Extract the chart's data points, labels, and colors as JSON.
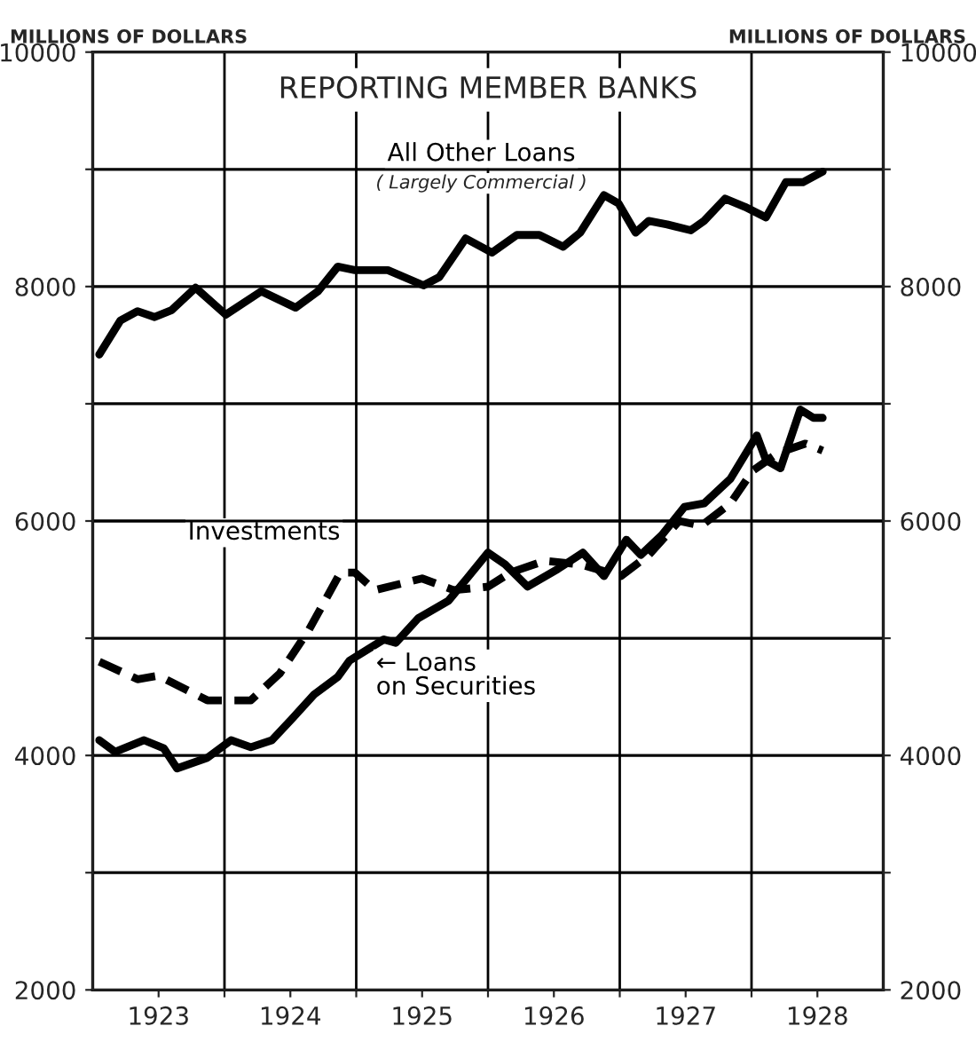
{
  "chart_data": {
    "type": "line",
    "title": "REPORTING MEMBER BANKS",
    "ylabel": "MILLIONS OF DOLLARS",
    "y2label": "MILLIONS OF DOLLARS",
    "annotations": [
      "( Largely Commercial )"
    ],
    "xlim": [
      1923,
      1929
    ],
    "xticks": [
      {
        "value": 1924,
        "label": null
      },
      {
        "value": 1925,
        "label": null
      },
      {
        "value": 1926,
        "label": null
      },
      {
        "value": 1927,
        "label": null
      },
      {
        "value": 1928,
        "label": null
      },
      {
        "value": 1923.5,
        "label": "1923"
      },
      {
        "value": 1924.5,
        "label": "1924"
      },
      {
        "value": 1925.5,
        "label": "1925"
      },
      {
        "value": 1926.5,
        "label": "1926"
      },
      {
        "value": 1927.5,
        "label": "1927"
      },
      {
        "value": 1928.5,
        "label": "1928"
      }
    ],
    "ylim": [
      2000,
      10000
    ],
    "yticks": [
      2000,
      {
        "value": 3000,
        "label": null
      },
      4000,
      {
        "value": 5000,
        "label": null
      },
      6000,
      {
        "value": 7000,
        "label": null
      },
      8000,
      {
        "value": 9000,
        "label": null
      },
      10000
    ],
    "y2lim": [
      2000,
      10000
    ],
    "y2ticks": [
      2000,
      {
        "value": 3000,
        "label": null
      },
      4000,
      {
        "value": 5000,
        "label": null
      },
      6000,
      {
        "value": 7000,
        "label": null
      },
      8000,
      {
        "value": 9000,
        "label": null
      },
      10000
    ],
    "grid": true,
    "legend": false,
    "marker": "none",
    "series": [
      {
        "name": "All Other Loans",
        "color": "#000000",
        "line_style": "solid",
        "x": [
          1923.05,
          1923.21,
          1923.34,
          1923.47,
          1923.6,
          1923.78,
          1924.01,
          1924.28,
          1924.54,
          1924.71,
          1924.86,
          1924.99,
          1925.24,
          1925.51,
          1925.63,
          1925.83,
          1926.03,
          1926.22,
          1926.39,
          1926.57,
          1926.7,
          1926.88,
          1926.99,
          1927.12,
          1927.22,
          1927.36,
          1927.54,
          1927.64,
          1927.8,
          1927.95,
          1928.11,
          1928.26,
          1928.39,
          1928.54
        ],
        "values": [
          7420,
          7710,
          7790,
          7740,
          7800,
          7990,
          7760,
          7960,
          7820,
          7960,
          8170,
          8140,
          8140,
          8010,
          8080,
          8410,
          8290,
          8440,
          8440,
          8340,
          8460,
          8780,
          8710,
          8460,
          8560,
          8530,
          8480,
          8560,
          8750,
          8680,
          8590,
          8890,
          8890,
          8980
        ]
      },
      {
        "name": "Investments",
        "color": "#000000",
        "line_style": "dashed",
        "x": [
          1923.05,
          1923.34,
          1923.5,
          1923.87,
          1924.2,
          1924.42,
          1924.64,
          1924.88,
          1924.99,
          1925.14,
          1925.5,
          1925.74,
          1926.0,
          1926.17,
          1926.43,
          1926.7,
          1927.01,
          1927.22,
          1927.45,
          1927.62,
          1927.84,
          1928.01,
          1928.2,
          1928.41,
          1928.54
        ],
        "values": [
          4800,
          4650,
          4680,
          4470,
          4470,
          4700,
          5070,
          5560,
          5560,
          5410,
          5510,
          5410,
          5440,
          5560,
          5660,
          5630,
          5530,
          5710,
          6000,
          5960,
          6150,
          6430,
          6580,
          6660,
          6600
        ]
      },
      {
        "name": "← Loans\non Securities",
        "color": "#000000",
        "line_style": "solid",
        "x": [
          1923.05,
          1923.17,
          1923.39,
          1923.54,
          1923.64,
          1923.87,
          1924.05,
          1924.2,
          1924.36,
          1924.51,
          1924.68,
          1924.86,
          1924.95,
          1925.21,
          1925.3,
          1925.47,
          1925.7,
          1925.84,
          1926.0,
          1926.13,
          1926.3,
          1926.53,
          1926.72,
          1926.88,
          1927.05,
          1927.16,
          1927.32,
          1927.49,
          1927.64,
          1927.84,
          1928.04,
          1928.11,
          1928.22,
          1928.37,
          1928.47,
          1928.54
        ],
        "values": [
          4130,
          4030,
          4130,
          4060,
          3890,
          3980,
          4130,
          4070,
          4130,
          4310,
          4520,
          4670,
          4810,
          4990,
          4960,
          5170,
          5320,
          5510,
          5730,
          5630,
          5440,
          5590,
          5730,
          5530,
          5840,
          5710,
          5880,
          6120,
          6150,
          6360,
          6730,
          6520,
          6450,
          6950,
          6880,
          6880
        ]
      }
    ]
  }
}
